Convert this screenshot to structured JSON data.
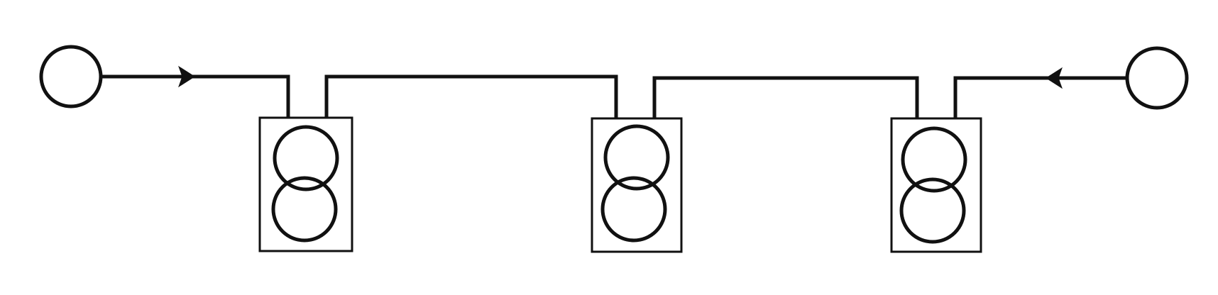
{
  "diagram": {
    "title": "",
    "nodes": [
      {
        "id": "source-left",
        "kind": "circle-terminal"
      },
      {
        "id": "source-right",
        "kind": "circle-terminal"
      }
    ],
    "transformers": [
      {
        "id": "transformer-1",
        "symbol": "double-winding-transformer-icon"
      },
      {
        "id": "transformer-2",
        "symbol": "double-winding-transformer-icon"
      },
      {
        "id": "transformer-3",
        "symbol": "double-winding-transformer-icon"
      }
    ],
    "flow_arrows": [
      {
        "id": "arrow-left",
        "direction": "right"
      },
      {
        "id": "arrow-right",
        "direction": "left"
      }
    ],
    "colors": {
      "line": "#111111",
      "background": "#ffffff"
    }
  }
}
